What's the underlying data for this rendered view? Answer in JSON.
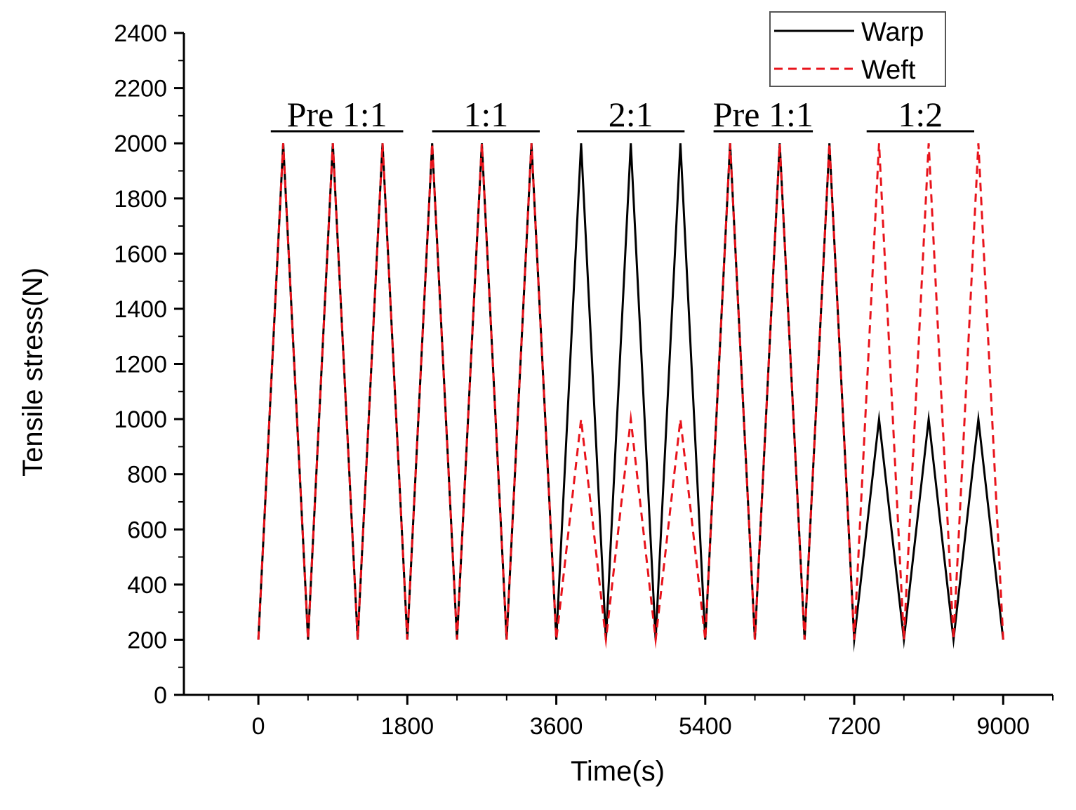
{
  "chart_data": {
    "type": "line",
    "title": "",
    "xlabel": "Time(s)",
    "ylabel": "Tensile stress(N)",
    "xlim": [
      -900,
      9600
    ],
    "ylim": [
      0,
      2400
    ],
    "xticks": [
      0,
      1800,
      3600,
      5400,
      7200,
      9000
    ],
    "xtick_labels": [
      "0",
      "1800",
      "3600",
      "5400",
      "7200",
      "9000"
    ],
    "yticks": [
      0,
      200,
      400,
      600,
      800,
      1000,
      1200,
      1400,
      1600,
      1800,
      2000,
      2200,
      2400
    ],
    "ytick_labels": [
      "0",
      "200",
      "400",
      "600",
      "800",
      "1000",
      "1200",
      "1400",
      "1600",
      "1800",
      "2000",
      "2200",
      "2400"
    ],
    "legend_position": "top-right",
    "colors": {
      "warp": "#000000",
      "weft": "#e8131b"
    },
    "phases": [
      {
        "label": "Pre 1:1",
        "x_start": 150,
        "x_end": 1750
      },
      {
        "label": "1:1",
        "x_start": 2100,
        "x_end": 3400
      },
      {
        "label": "2:1",
        "x_start": 3850,
        "x_end": 5150
      },
      {
        "label": "Pre 1:1",
        "x_start": 5500,
        "x_end": 6700
      },
      {
        "label": "1:2",
        "x_start": 7350,
        "x_end": 8650
      }
    ],
    "series": [
      {
        "name": "Warp",
        "style": "solid",
        "x": [
          0,
          300,
          600,
          900,
          1200,
          1500,
          1800,
          2100,
          2400,
          2700,
          3000,
          3300,
          3600,
          3900,
          4200,
          4500,
          4800,
          5100,
          5400,
          5700,
          6000,
          6300,
          6600,
          6900,
          7200,
          7500,
          7800,
          8100,
          8400,
          8700,
          9000
        ],
        "y": [
          200,
          2000,
          200,
          2000,
          200,
          2000,
          200,
          2000,
          200,
          2000,
          200,
          2000,
          200,
          2000,
          200,
          2000,
          200,
          2000,
          200,
          2000,
          200,
          2000,
          200,
          2000,
          200,
          1000,
          200,
          1000,
          200,
          1000,
          200
        ]
      },
      {
        "name": "Weft",
        "style": "dashed",
        "x": [
          0,
          300,
          600,
          900,
          1200,
          1500,
          1800,
          2100,
          2400,
          2700,
          3000,
          3300,
          3600,
          3900,
          4200,
          4500,
          4800,
          5100,
          5400,
          5700,
          6000,
          6300,
          6600,
          6900,
          7200,
          7500,
          7800,
          8100,
          8400,
          8700,
          9000
        ],
        "y": [
          200,
          2000,
          200,
          2000,
          200,
          2000,
          200,
          2000,
          200,
          2000,
          200,
          2000,
          200,
          1000,
          200,
          1000,
          200,
          1000,
          200,
          2000,
          200,
          2000,
          200,
          2000,
          200,
          2000,
          200,
          2000,
          200,
          2000,
          200
        ]
      }
    ]
  }
}
